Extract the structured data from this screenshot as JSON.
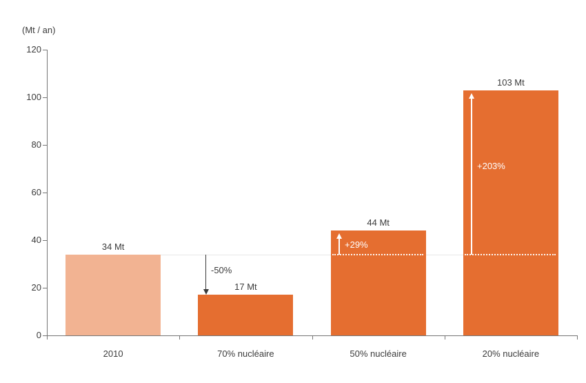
{
  "chart_data": {
    "type": "bar",
    "title": "",
    "unit_label": "(Mt / an)",
    "categories": [
      "2010",
      "70% nucléaire",
      "50% nucléaire",
      "20% nucléaire"
    ],
    "values": [
      34,
      17,
      44,
      103
    ],
    "bar_value_labels": [
      "34 Mt",
      "17 Mt",
      "44 Mt",
      "103 Mt"
    ],
    "ylim": [
      0,
      120
    ],
    "yticks": [
      0,
      20,
      40,
      60,
      80,
      100,
      120
    ],
    "grid": "off",
    "legend": "none",
    "reference_line_value": 34,
    "annotations": [
      {
        "category": "70% nucléaire",
        "label": "-50%",
        "style": "dark-down",
        "label_pos": "near-start"
      },
      {
        "category": "50% nucléaire",
        "label": "+29%",
        "style": "white-up",
        "label_pos": "near-tip"
      },
      {
        "category": "20% nucléaire",
        "label": "+203%",
        "style": "white-up",
        "label_pos": "mid"
      }
    ],
    "colors": {
      "baseline_bar": "#F2B392",
      "scenario_bar": "#E56E30",
      "axis": "#757575",
      "text": "#3A3A3A",
      "reference_line": "#E6E6E6",
      "annotation_dark": "#3A3A3A",
      "annotation_light": "#FFFFFF"
    }
  }
}
